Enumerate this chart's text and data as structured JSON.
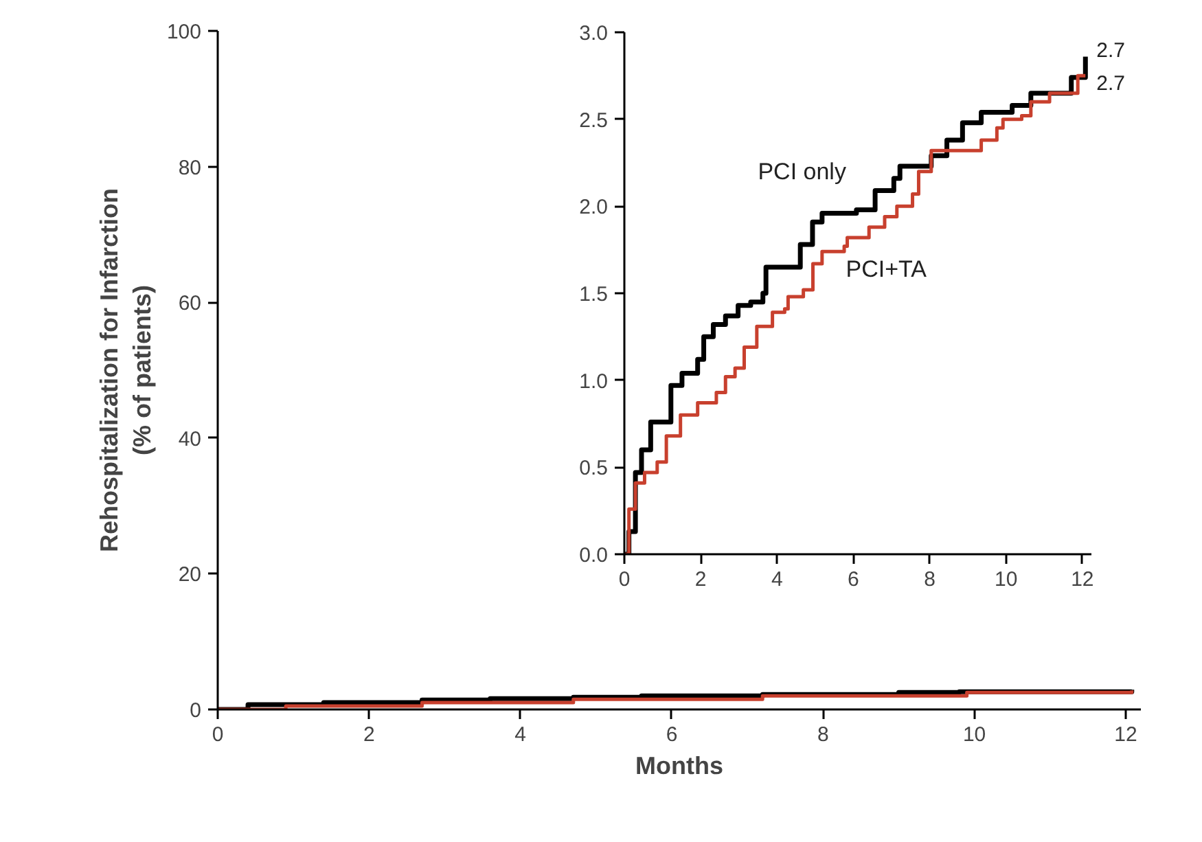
{
  "chart_data": [
    {
      "type": "step",
      "xlabel": "Months",
      "ylabel": "Rehospitalization for Infarction\n(% of patients)",
      "xlim": [
        0,
        12.2
      ],
      "ylim": [
        0,
        100
      ],
      "xticks": [
        0,
        2,
        4,
        6,
        8,
        10,
        12
      ],
      "yticks": [
        0,
        20,
        40,
        60,
        80,
        100
      ],
      "grid": false,
      "line_style": "solid",
      "marker": "none",
      "series": [
        {
          "color": "#000000",
          "x": [
            0,
            0.4,
            1.4,
            2.7,
            3.6,
            4.7,
            5.6,
            7.2,
            9.0,
            9.8,
            12.08
          ],
          "values": [
            0,
            0.7,
            1.0,
            1.4,
            1.6,
            1.8,
            2.0,
            2.2,
            2.5,
            2.6,
            2.9
          ]
        },
        {
          "color": "#c8402e",
          "x": [
            0,
            0.9,
            2.7,
            4.7,
            7.2,
            9.9,
            12.08
          ],
          "values": [
            0,
            0.5,
            1.0,
            1.5,
            2.0,
            2.5,
            2.8
          ]
        }
      ]
    },
    {
      "type": "step",
      "xlim": [
        0,
        12.25
      ],
      "ylim": [
        0,
        3
      ],
      "xticks": [
        0,
        2,
        4,
        6,
        8,
        10,
        12
      ],
      "yticks": [
        {
          "value": 0,
          "label": "0.0"
        },
        0.5,
        {
          "value": 1,
          "label": "1.0"
        },
        1.5,
        {
          "value": 2,
          "label": "2.0"
        },
        2.5,
        {
          "value": 3,
          "label": "3.0"
        }
      ],
      "grid": false,
      "line_style": "solid",
      "marker": "none",
      "annotations": [
        {
          "text": "2.7",
          "x": 12.08,
          "y": 2.86
        },
        {
          "text": "2.7",
          "x": 12.08,
          "y": 2.75
        }
      ],
      "series": [
        {
          "name": "PCI only",
          "color": "#000000",
          "x": [
            0,
            0.12,
            0.29,
            0.45,
            0.69,
            0.94,
            1.22,
            1.51,
            1.92,
            2.08,
            2.33,
            2.65,
            2.98,
            3.31,
            3.63,
            3.71,
            4.37,
            4.61,
            4.93,
            5.18,
            6.08,
            6.57,
            7.06,
            7.22,
            7.76,
            8.04,
            8.45,
            8.86,
            9.35,
            10.16,
            10.65,
            11.31,
            11.71,
            12.08
          ],
          "values": [
            0,
            0.13,
            0.47,
            0.6,
            0.76,
            0.76,
            0.97,
            1.04,
            1.12,
            1.25,
            1.32,
            1.37,
            1.43,
            1.45,
            1.5,
            1.65,
            1.65,
            1.78,
            1.91,
            1.96,
            1.98,
            2.09,
            2.16,
            2.23,
            2.23,
            2.29,
            2.38,
            2.48,
            2.54,
            2.58,
            2.65,
            2.65,
            2.74,
            2.86
          ]
        },
        {
          "name": "PCI+TA",
          "color": "#c8402e",
          "x": [
            0,
            0.12,
            0.29,
            0.53,
            0.86,
            1.1,
            1.47,
            1.92,
            2.41,
            2.65,
            2.9,
            3.14,
            3.47,
            3.88,
            4.2,
            4.29,
            4.69,
            4.94,
            5.18,
            5.76,
            5.84,
            6.41,
            6.82,
            7.14,
            7.55,
            7.71,
            8.04,
            8.86,
            9.35,
            9.76,
            9.92,
            10.41,
            10.65,
            11.14,
            11.8,
            11.88,
            12.08
          ],
          "values": [
            0,
            0.26,
            0.41,
            0.47,
            0.53,
            0.68,
            0.8,
            0.87,
            0.93,
            1.02,
            1.07,
            1.19,
            1.31,
            1.39,
            1.41,
            1.48,
            1.52,
            1.67,
            1.74,
            1.77,
            1.82,
            1.88,
            1.94,
            2.0,
            2.07,
            2.2,
            2.32,
            2.32,
            2.38,
            2.45,
            2.5,
            2.52,
            2.6,
            2.65,
            2.65,
            2.75,
            2.75
          ]
        }
      ]
    }
  ]
}
